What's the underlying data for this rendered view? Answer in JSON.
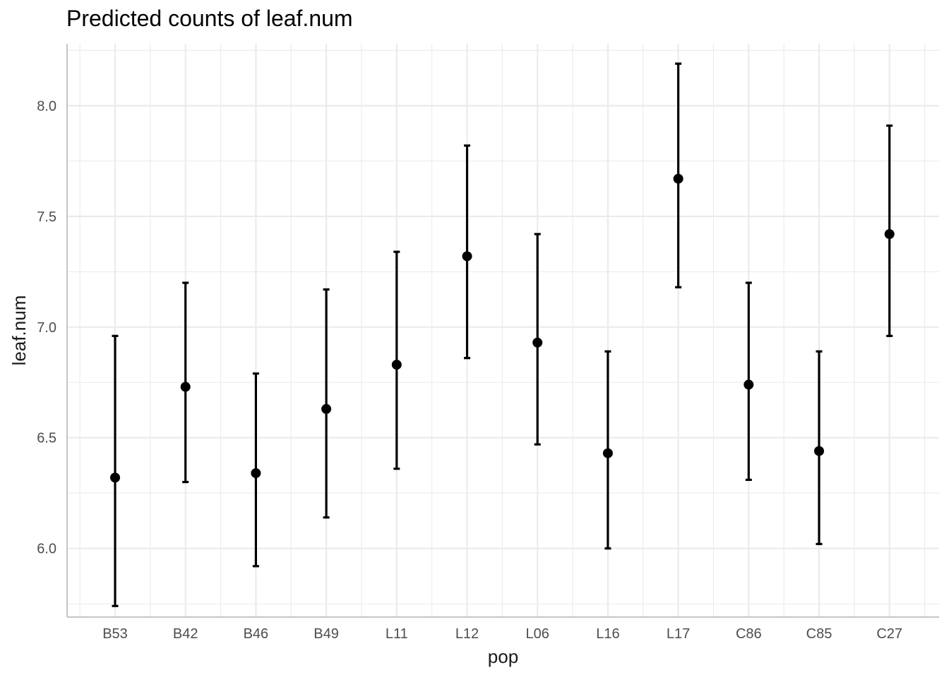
{
  "chart_data": {
    "type": "scatter",
    "title": "Predicted counts of leaf.num",
    "xlabel": "pop",
    "ylabel": "leaf.num",
    "categories": [
      "B53",
      "B42",
      "B46",
      "B49",
      "L11",
      "L12",
      "L06",
      "L16",
      "L17",
      "C86",
      "C85",
      "C27"
    ],
    "series": [
      {
        "predicted": [
          6.32,
          6.73,
          6.34,
          6.63,
          6.83,
          7.32,
          6.93,
          6.43,
          7.67,
          6.74,
          6.44,
          7.42
        ],
        "conf_low": [
          5.74,
          6.3,
          5.92,
          6.14,
          6.36,
          6.86,
          6.47,
          6.0,
          7.18,
          6.31,
          6.02,
          6.96
        ],
        "conf_high": [
          6.96,
          7.2,
          6.79,
          7.17,
          7.34,
          7.82,
          7.42,
          6.89,
          8.19,
          7.2,
          6.89,
          7.91
        ]
      }
    ],
    "ylim": [
      5.69,
      8.28
    ],
    "yticks": [
      "6.0",
      "6.5",
      "7.0",
      "7.5",
      "8.0"
    ],
    "grid": true,
    "colors": {
      "points": "#000000",
      "grid": "#ebebeb",
      "axis": "#b3b3b3"
    }
  }
}
